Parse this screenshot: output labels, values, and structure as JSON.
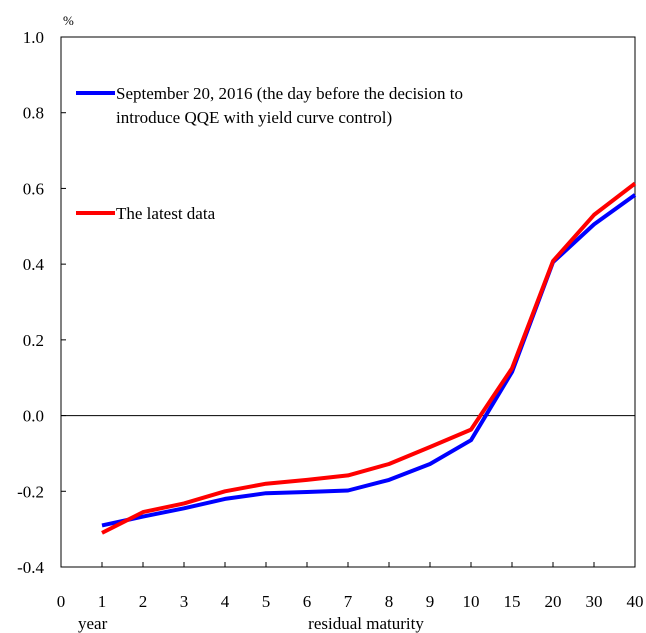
{
  "chart_data": {
    "type": "line",
    "y_unit": "%",
    "x_unit_label": "year",
    "xlabel": "residual maturity",
    "ylim": [
      -0.4,
      1.0
    ],
    "y_ticks": [
      "1.0",
      "0.8",
      "0.6",
      "0.4",
      "0.2",
      "0.0",
      "-0.2",
      "-0.4"
    ],
    "y_tick_values": [
      1.0,
      0.8,
      0.6,
      0.4,
      0.2,
      0.0,
      -0.2,
      -0.4
    ],
    "x_ticks": [
      "0",
      "1",
      "2",
      "3",
      "4",
      "5",
      "6",
      "7",
      "8",
      "9",
      "10",
      "15",
      "20",
      "30",
      "40"
    ],
    "x": [
      "1",
      "2",
      "3",
      "4",
      "5",
      "6",
      "7",
      "8",
      "9",
      "10",
      "15",
      "20",
      "30",
      "40"
    ],
    "series": [
      {
        "name": "September 20, 2016 (the day before the decision to introduce QQE with yield curve control)",
        "legend_lines": [
          "September 20, 2016 (the day before the decision to",
          "introduce QQE with yield curve control)"
        ],
        "color": "#0000ff",
        "values": [
          -0.29,
          -0.267,
          -0.245,
          -0.22,
          -0.205,
          -0.202,
          -0.198,
          -0.17,
          -0.128,
          -0.065,
          0.115,
          0.405,
          0.505,
          0.583
        ]
      },
      {
        "name": "The latest data",
        "legend_lines": [
          "The latest data"
        ],
        "color": "#ff0000",
        "values": [
          -0.31,
          -0.255,
          -0.232,
          -0.2,
          -0.18,
          -0.17,
          -0.158,
          -0.128,
          -0.083,
          -0.037,
          0.125,
          0.408,
          0.53,
          0.613
        ]
      }
    ],
    "zero_line": true,
    "grid": false,
    "legend_position": "top-left"
  }
}
